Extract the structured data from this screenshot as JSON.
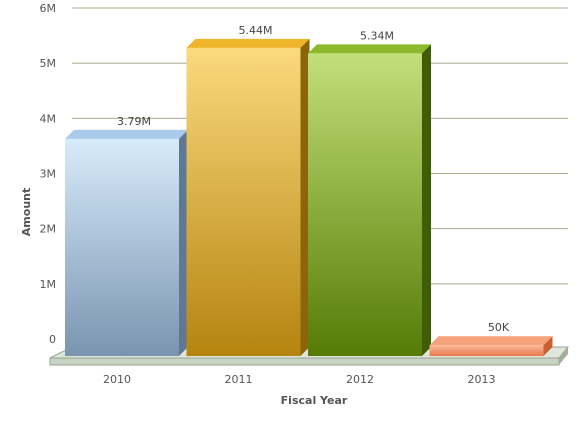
{
  "chart_data": {
    "type": "bar",
    "title": "",
    "xlabel": "Fiscal Year",
    "ylabel": "Amount",
    "categories": [
      "2010",
      "2011",
      "2012",
      "2013"
    ],
    "values": [
      3790000,
      5440000,
      5340000,
      50000
    ],
    "data_labels": [
      "3.79M",
      "5.44M",
      "5.34M",
      "50K"
    ],
    "ylim": [
      0,
      6000000
    ],
    "yticks": [
      0,
      1000000,
      2000000,
      3000000,
      4000000,
      5000000,
      6000000
    ],
    "ytick_labels": [
      "0",
      "1M",
      "2M",
      "3M",
      "4M",
      "5M",
      "6M"
    ],
    "grid": true,
    "style": "3d-column",
    "colors": {
      "bars": [
        {
          "top": "#d8ebfb",
          "bottom": "#7a94b0",
          "side": "#5f7894",
          "cap": "#a9cbeb"
        },
        {
          "top": "#fbd97d",
          "bottom": "#b58410",
          "side": "#8d6509",
          "cap": "#efb52a"
        },
        {
          "top": "#c2e07a",
          "bottom": "#567b06",
          "side": "#3f5d04",
          "cap": "#8cba2c"
        },
        {
          "top": "#fbb99a",
          "bottom": "#e97a4c",
          "side": "#c85f30",
          "cap": "#f6a27c"
        }
      ],
      "gridline": "#a9a98e",
      "floor": "#c9d3c3"
    }
  }
}
